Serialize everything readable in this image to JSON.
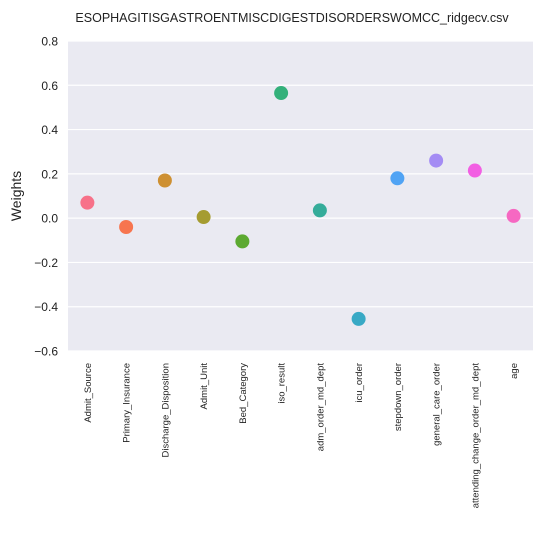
{
  "chart_data": {
    "type": "scatter",
    "title": "ESOPHAGITISGASTROENTMISCDIGESTDISORDERSWOMCC_ridgecv.csv",
    "xlabel": "",
    "ylabel": "Weights",
    "ylim": [
      -0.6,
      0.8
    ],
    "yticks": [
      -0.6,
      -0.4,
      -0.2,
      0.0,
      0.2,
      0.4,
      0.6,
      0.8
    ],
    "ytick_labels": [
      "−0.6",
      "−0.4",
      "−0.2",
      "0.0",
      "0.2",
      "0.4",
      "0.6",
      "0.8"
    ],
    "grid": true,
    "categories": [
      "Admit_Source",
      "Primary_Insurance",
      "Discharge_Disposition",
      "Admit_Unit",
      "Bed_Category",
      "iso_result",
      "adm_order_md_dept",
      "icu_order",
      "stepdown_order",
      "general_care_order",
      "attending_change_order_md_dept",
      "age"
    ],
    "values": [
      0.07,
      -0.04,
      0.17,
      0.005,
      -0.105,
      0.565,
      0.035,
      -0.455,
      0.18,
      0.26,
      0.215,
      0.01
    ],
    "colors": [
      "#f77189",
      "#f7754f",
      "#ce9032",
      "#a59c31",
      "#5ca931",
      "#33b07a",
      "#35ac9a",
      "#38a9c5",
      "#50a3f4",
      "#a48cf4",
      "#f25fe3",
      "#f668c2"
    ],
    "background": "#eaeaf2",
    "gridcolor": "#ffffff"
  }
}
